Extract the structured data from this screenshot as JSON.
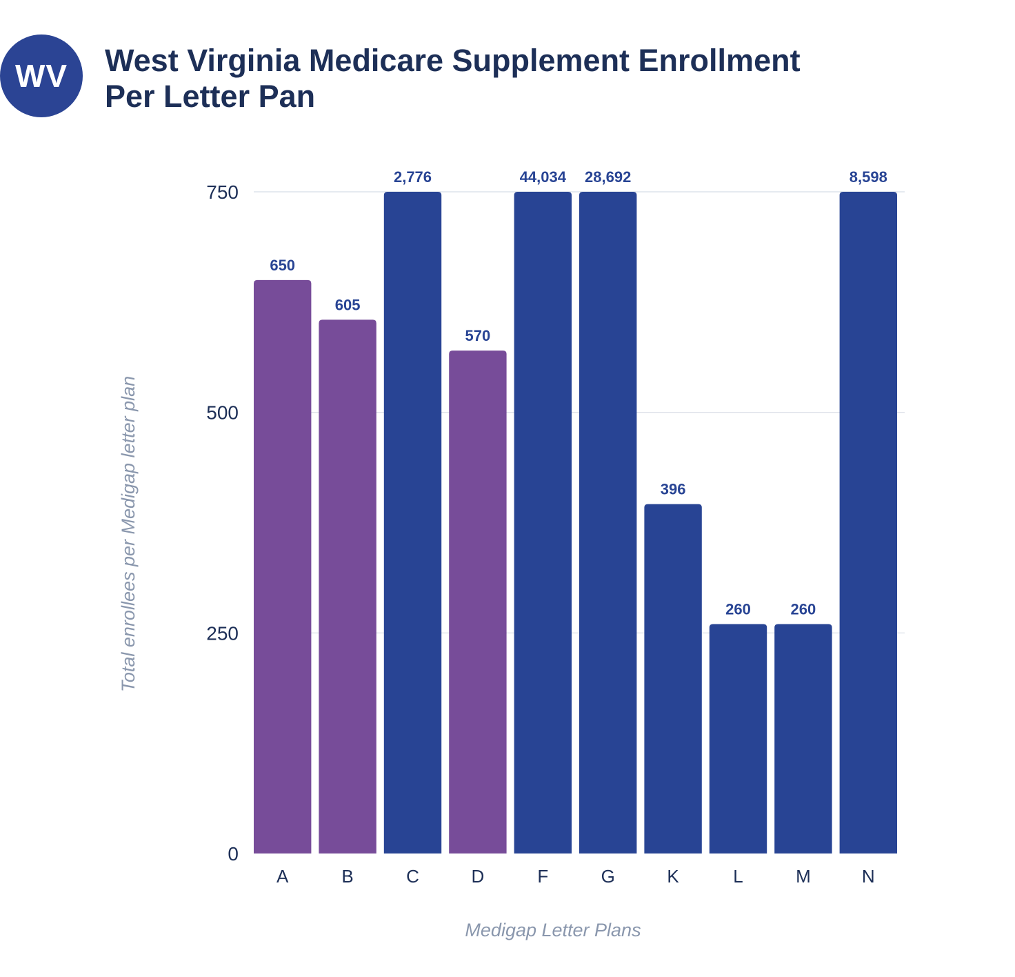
{
  "header": {
    "badge": "WV",
    "title_line1": "West Virginia Medicare Supplement Enrollment",
    "title_line2": "Per Letter Pan"
  },
  "colors": {
    "badge": "#2b4494",
    "title": "#1d2f57",
    "bar_purple": "#774c99",
    "bar_blue": "#284494",
    "value_label": "#284494",
    "tick_label": "#1d2f57",
    "axis_title": "#8a97ad",
    "grid": "#d8dde6"
  },
  "chart_data": {
    "type": "bar",
    "title": "West Virginia Medicare Supplement Enrollment Per Letter Pan",
    "xlabel": "Medigap Letter Plans",
    "ylabel": "Total enrollees per Medigap letter plan",
    "ylim": [
      0,
      750
    ],
    "yticks": [
      0,
      250,
      500,
      750
    ],
    "grid": true,
    "legend": "none",
    "categories": [
      "A",
      "B",
      "C",
      "D",
      "F",
      "G",
      "K",
      "L",
      "M",
      "N"
    ],
    "values": [
      650,
      605,
      2776,
      570,
      44034,
      28692,
      396,
      260,
      260,
      8598
    ],
    "value_labels": [
      "650",
      "605",
      "2,776",
      "570",
      "44,034",
      "28,692",
      "396",
      "260",
      "260",
      "8,598"
    ],
    "bar_colors": [
      "#774c99",
      "#774c99",
      "#284494",
      "#774c99",
      "#284494",
      "#284494",
      "#284494",
      "#284494",
      "#284494",
      "#284494"
    ]
  }
}
